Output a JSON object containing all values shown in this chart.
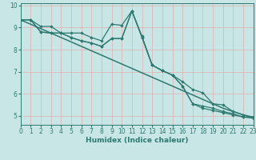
{
  "xlabel": "Humidex (Indice chaleur)",
  "background_color": "#c8e6e6",
  "grid_color": "#ddb8b8",
  "line_color": "#2d7a70",
  "x_values": [
    0,
    1,
    2,
    3,
    4,
    5,
    6,
    7,
    8,
    9,
    10,
    11,
    12,
    13,
    14,
    15,
    16,
    17,
    18,
    19,
    20,
    21,
    22,
    23
  ],
  "line_flat": [
    9.35,
    9.35,
    9.05,
    9.05,
    8.75,
    8.75,
    8.75,
    8.55,
    8.4,
    9.15,
    9.1,
    9.75,
    8.6,
    7.3,
    7.05,
    6.85,
    6.55,
    6.2,
    6.05,
    5.55,
    5.5,
    5.2,
    5.05,
    4.95
  ],
  "line2": [
    9.35,
    9.35,
    8.8,
    8.75,
    8.75,
    8.55,
    8.4,
    8.3,
    8.15,
    8.5,
    8.5,
    9.75,
    8.55,
    7.3,
    7.05,
    6.85,
    6.35,
    5.55,
    5.45,
    5.35,
    5.2,
    5.1,
    4.95,
    4.95
  ],
  "line3": [
    9.35,
    9.35,
    8.8,
    8.75,
    8.75,
    8.55,
    8.4,
    8.3,
    8.15,
    8.5,
    8.5,
    9.75,
    8.55,
    7.3,
    7.05,
    6.85,
    6.35,
    5.55,
    5.35,
    5.25,
    5.15,
    5.05,
    4.95,
    4.9
  ],
  "line_trend": [
    9.35,
    9.15,
    8.95,
    8.75,
    8.55,
    8.35,
    8.15,
    7.95,
    7.75,
    7.55,
    7.35,
    7.15,
    6.95,
    6.75,
    6.55,
    6.35,
    6.15,
    5.95,
    5.75,
    5.55,
    5.35,
    5.2,
    5.05,
    4.9
  ],
  "xlim": [
    0,
    23
  ],
  "ylim": [
    4.6,
    10.1
  ],
  "yticks": [
    5,
    6,
    7,
    8,
    9,
    10
  ],
  "xticks": [
    0,
    1,
    2,
    3,
    4,
    5,
    6,
    7,
    8,
    9,
    10,
    11,
    12,
    13,
    14,
    15,
    16,
    17,
    18,
    19,
    20,
    21,
    22,
    23
  ],
  "label_fontsize": 6.5,
  "tick_fontsize": 5.5
}
